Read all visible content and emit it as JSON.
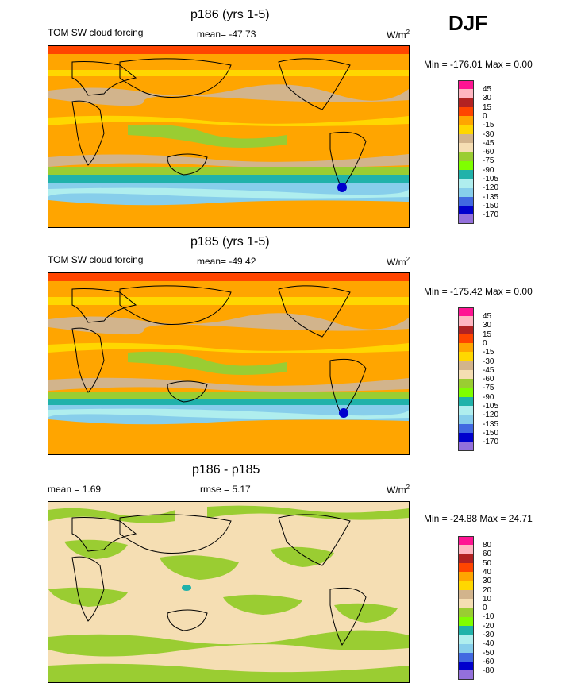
{
  "season": "DJF",
  "panels": [
    {
      "title": "p186 (yrs 1-5)",
      "left_label": "TOM SW cloud forcing",
      "center_label": "mean= -47.73",
      "units": "W/m",
      "units_sup": "2",
      "minmax": "Min = -176.01 Max =   0.00",
      "colorbar_labels": [
        "45",
        "30",
        "15",
        "0",
        "-15",
        "-30",
        "-45",
        "-60",
        "-75",
        "-90",
        "-105",
        "-120",
        "-135",
        "-150",
        "-170"
      ],
      "colorbar_colors": [
        "#ff1493",
        "#ffb6c1",
        "#b22222",
        "#ff4500",
        "#ffa500",
        "#ffd700",
        "#d2b48c",
        "#f5deb3",
        "#9acd32",
        "#7fff00",
        "#20b2aa",
        "#afeeee",
        "#87ceeb",
        "#4169e1",
        "#0000cd",
        "#9370db"
      ]
    },
    {
      "title": "p185 (yrs 1-5)",
      "left_label": "TOM SW cloud forcing",
      "center_label": "mean= -49.42",
      "units": "W/m",
      "units_sup": "2",
      "minmax": "Min = -175.42 Max =   0.00",
      "colorbar_labels": [
        "45",
        "30",
        "15",
        "0",
        "-15",
        "-30",
        "-45",
        "-60",
        "-75",
        "-90",
        "-105",
        "-120",
        "-135",
        "-150",
        "-170"
      ],
      "colorbar_colors": [
        "#ff1493",
        "#ffb6c1",
        "#b22222",
        "#ff4500",
        "#ffa500",
        "#ffd700",
        "#d2b48c",
        "#f5deb3",
        "#9acd32",
        "#7fff00",
        "#20b2aa",
        "#afeeee",
        "#87ceeb",
        "#4169e1",
        "#0000cd",
        "#9370db"
      ]
    },
    {
      "title": "p186 - p185",
      "left_label": "mean =   1.69",
      "center_label": "rmse =   5.17",
      "units": "W/m",
      "units_sup": "2",
      "minmax": "Min = -24.88 Max =  24.71",
      "colorbar_labels": [
        "80",
        "60",
        "50",
        "40",
        "30",
        "20",
        "10",
        "0",
        "-10",
        "-20",
        "-30",
        "-40",
        "-50",
        "-60",
        "-80"
      ],
      "colorbar_colors": [
        "#ff1493",
        "#ffb6c1",
        "#b22222",
        "#ff4500",
        "#ffa500",
        "#ffd700",
        "#d2b48c",
        "#f5deb3",
        "#9acd32",
        "#7fff00",
        "#20b2aa",
        "#afeeee",
        "#87ceeb",
        "#4169e1",
        "#0000cd",
        "#9370db"
      ]
    }
  ]
}
